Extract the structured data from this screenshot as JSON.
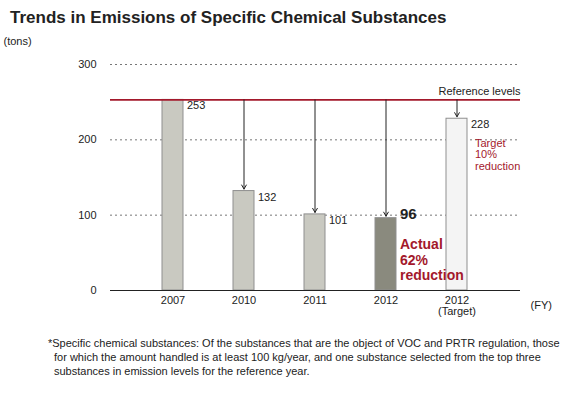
{
  "chart_data": {
    "type": "bar",
    "title": "Trends in Emissions of Specific Chemical Substances",
    "y_label": "(tons)",
    "x_label": "(FY)",
    "categories": [
      "2007",
      "2010",
      "2011",
      "2012",
      "2012\n(Target)"
    ],
    "values": [
      253,
      132,
      101,
      96,
      228
    ],
    "colors": [
      "#c9c9c1",
      "#c9c9c1",
      "#c9c9c1",
      "#8a8a7e",
      "#f4f4f4"
    ],
    "ylim": [
      0,
      300
    ],
    "yticks": [
      0,
      100,
      200,
      300
    ],
    "grid": true,
    "data_labels": true,
    "reference": {
      "value": 253,
      "label": "Reference levels"
    },
    "annotations": [
      {
        "text": "Actual\n62%\nreduction",
        "category": "2012"
      },
      {
        "text": "Target\n10%\nreduction",
        "category": "2012\n(Target)"
      }
    ],
    "note": "*Specific chemical substances: Of the substances that are the object of VOC and PRTR regulation, those for which the amount handled is at least 100 kg/year, and one substance selected from the top three substances in emission levels for the reference year."
  }
}
